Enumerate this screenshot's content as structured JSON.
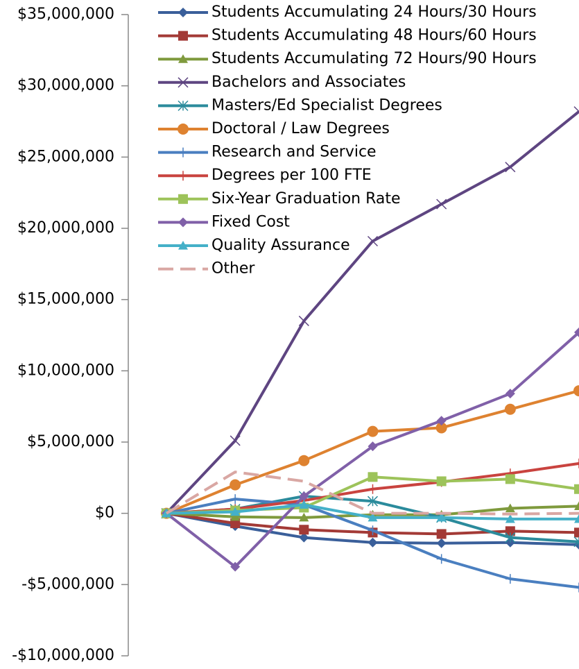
{
  "chart_data": {
    "type": "line",
    "categories": [
      null,
      null,
      null,
      null,
      null,
      null,
      null
    ],
    "ylim": [
      -10000000,
      35000000
    ],
    "yticks": [
      {
        "value": -10000000,
        "label": "-$10,000,000"
      },
      {
        "value": -5000000,
        "label": "-$5,000,000"
      },
      {
        "value": 0,
        "label": "$0"
      },
      {
        "value": 5000000,
        "label": "$5,000,000"
      },
      {
        "value": 10000000,
        "label": "$10,000,000"
      },
      {
        "value": 15000000,
        "label": "$15,000,000"
      },
      {
        "value": 20000000,
        "label": "$20,000,000"
      },
      {
        "value": 25000000,
        "label": "$25,000,000"
      },
      {
        "value": 30000000,
        "label": "$30,000,000"
      },
      {
        "value": 35000000,
        "label": "$35,000,000"
      }
    ],
    "grid": false,
    "legend": "top-left",
    "series": [
      {
        "name": "Students Accumulating 24 Hours/30 Hours",
        "color": "#3a5f9a",
        "marker": "diamond",
        "values": [
          0,
          -900000,
          -1700000,
          -2050000,
          -2100000,
          -2050000,
          -2200000
        ]
      },
      {
        "name": "Students Accumulating 48 Hours/60 Hours",
        "color": "#a33a36",
        "marker": "square",
        "values": [
          0,
          -700000,
          -1150000,
          -1350000,
          -1450000,
          -1250000,
          -1350000
        ]
      },
      {
        "name": "Students Accumulating 72 Hours/90 Hours",
        "color": "#7f9a3d",
        "marker": "triangle",
        "values": [
          0,
          -250000,
          -300000,
          -100000,
          -100000,
          350000,
          500000
        ]
      },
      {
        "name": "Bachelors and Associates",
        "color": "#5e4581",
        "marker": "x",
        "values": [
          0,
          5100000,
          13500000,
          19100000,
          21700000,
          24300000,
          28200000
        ]
      },
      {
        "name": "Masters/Ed Specialist Degrees",
        "color": "#2b8b9c",
        "marker": "asterisk",
        "values": [
          0,
          300000,
          1200000,
          850000,
          -300000,
          -1700000,
          -2000000
        ]
      },
      {
        "name": "Doctoral / Law Degrees",
        "color": "#de8230",
        "marker": "circle",
        "values": [
          0,
          2000000,
          3700000,
          5750000,
          6000000,
          7300000,
          8600000
        ]
      },
      {
        "name": "Research and Service",
        "color": "#4a7fc0",
        "marker": "plus",
        "values": [
          0,
          1000000,
          600000,
          -1200000,
          -3200000,
          -4600000,
          -5200000
        ]
      },
      {
        "name": "Degrees per 100 FTE",
        "color": "#c9433f",
        "marker": "plus",
        "values": [
          0,
          300000,
          900000,
          1700000,
          2200000,
          2800000,
          3500000
        ]
      },
      {
        "name": "Six-Year Graduation Rate",
        "color": "#9dc35a",
        "marker": "square",
        "values": [
          0,
          200000,
          400000,
          2550000,
          2250000,
          2400000,
          1700000
        ]
      },
      {
        "name": "Fixed Cost",
        "color": "#8060a8",
        "marker": "diamond",
        "values": [
          0,
          -3750000,
          1200000,
          4700000,
          6500000,
          8400000,
          12700000
        ]
      },
      {
        "name": "Quality Assurance",
        "color": "#44b0c8",
        "marker": "triangle",
        "values": [
          0,
          100000,
          600000,
          -300000,
          -300000,
          -400000,
          -400000
        ]
      },
      {
        "name": "Other",
        "color": "#d9a7a3",
        "marker": "none",
        "dash": true,
        "values": [
          0,
          2900000,
          2250000,
          0,
          0,
          -50000,
          0
        ]
      }
    ]
  }
}
